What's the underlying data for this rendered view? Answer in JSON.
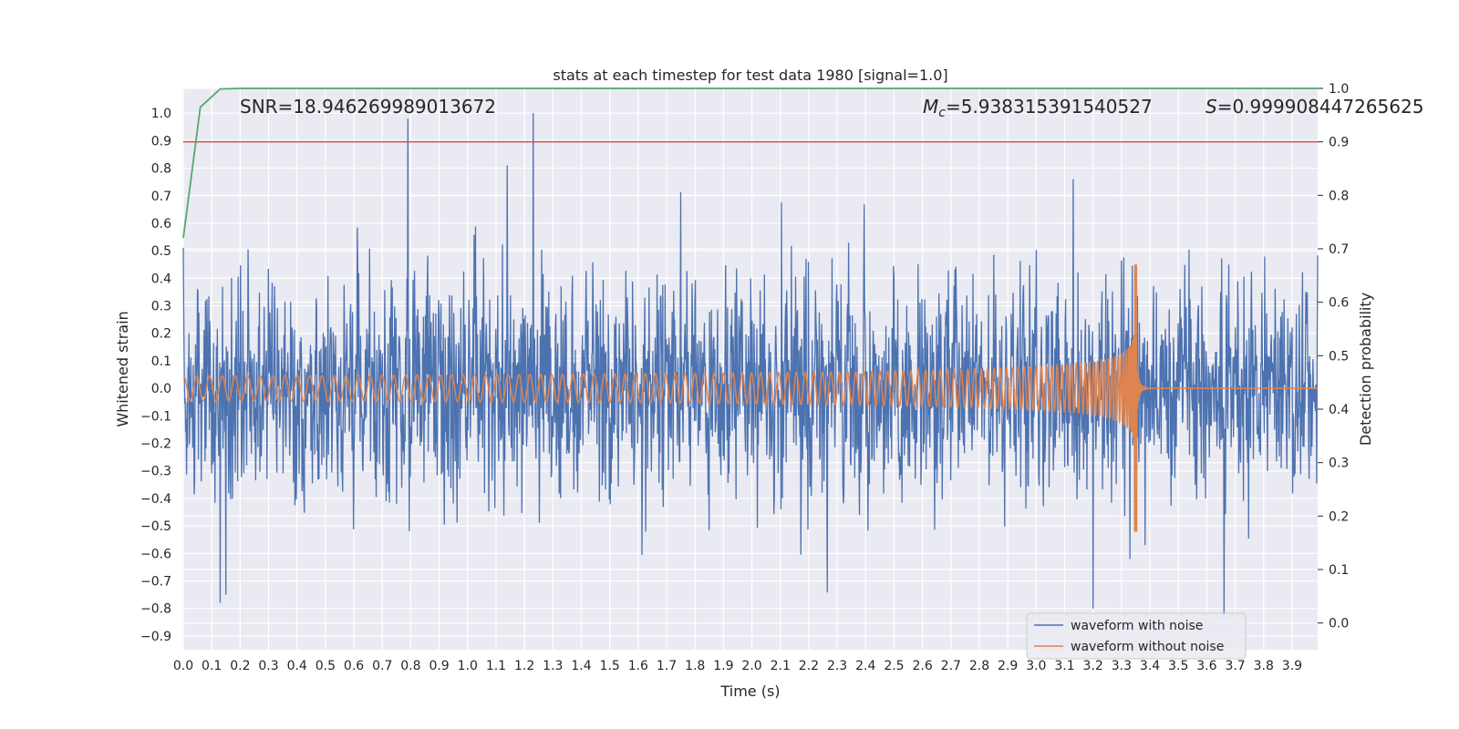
{
  "chart_data": {
    "type": "line",
    "title": "stats at each timestep for test data 1980 [signal=1.0]",
    "xlabel": "Time (s)",
    "ylabel_left": "Whitened strain",
    "ylabel_right": "Detection probability",
    "xlim": [
      0.0,
      3.99
    ],
    "ylim_left": [
      -0.95,
      1.09
    ],
    "ylim_right": [
      -0.05,
      1.0
    ],
    "x_ticks": [
      "0.0",
      "0.1",
      "0.2",
      "0.3",
      "0.4",
      "0.5",
      "0.6",
      "0.7",
      "0.8",
      "0.9",
      "1.0",
      "1.1",
      "1.2",
      "1.3",
      "1.4",
      "1.5",
      "1.6",
      "1.7",
      "1.8",
      "1.9",
      "2.0",
      "2.1",
      "2.2",
      "2.3",
      "2.4",
      "2.5",
      "2.6",
      "2.7",
      "2.8",
      "2.9",
      "3.0",
      "3.1",
      "3.2",
      "3.3",
      "3.4",
      "3.5",
      "3.6",
      "3.7",
      "3.8",
      "3.9"
    ],
    "y_ticks_left": [
      "1.0",
      "0.9",
      "0.8",
      "0.7",
      "0.6",
      "0.5",
      "0.4",
      "0.3",
      "0.2",
      "0.1",
      "0.0",
      "−0.1",
      "−0.2",
      "−0.3",
      "−0.4",
      "−0.5",
      "−0.6",
      "−0.7",
      "−0.8",
      "−0.9"
    ],
    "y_ticks_right": [
      "1.0",
      "0.9",
      "0.8",
      "0.7",
      "0.6",
      "0.5",
      "0.4",
      "0.3",
      "0.2",
      "0.1",
      "0.0"
    ],
    "annotations": {
      "snr": "SNR=18.946269989013672",
      "mc_symbol": "M",
      "mc_subscript": "c",
      "mc_value": "=5.938315391540527",
      "s_symbol": "S",
      "s_value": "=0.999908447265625"
    },
    "threshold": {
      "value": 0.9,
      "color": "#c44e52"
    },
    "detection_probability": {
      "x": [
        0.0,
        0.06,
        0.13,
        0.2,
        0.5,
        1.0,
        2.0,
        3.0,
        3.99
      ],
      "y": [
        0.72,
        0.965,
        0.999,
        1.0,
        1.0,
        1.0,
        1.0,
        1.0,
        1.0
      ],
      "color": "#55a868"
    },
    "series": [
      {
        "name": "waveform with noise",
        "color": "#4c72b0",
        "noise_std": 0.2,
        "peaks": [
          [
            0.79,
            0.98
          ],
          [
            1.23,
            1.0
          ],
          [
            1.14,
            0.81
          ],
          [
            0.13,
            -0.78
          ],
          [
            0.15,
            -0.75
          ],
          [
            3.2,
            -0.8
          ],
          [
            3.66,
            -0.83
          ],
          [
            3.33,
            -0.62
          ],
          [
            3.13,
            0.76
          ]
        ]
      },
      {
        "name": "waveform without noise",
        "color": "#dd8452",
        "amplitude_start": 0.05,
        "amplitude_peak_pos": 0.45,
        "amplitude_peak_neg": -0.52,
        "merger_time": 3.35,
        "freq_start_hz": 22,
        "freq_end_hz": 60
      }
    ],
    "legend_position": "lower-right",
    "grid": true
  }
}
